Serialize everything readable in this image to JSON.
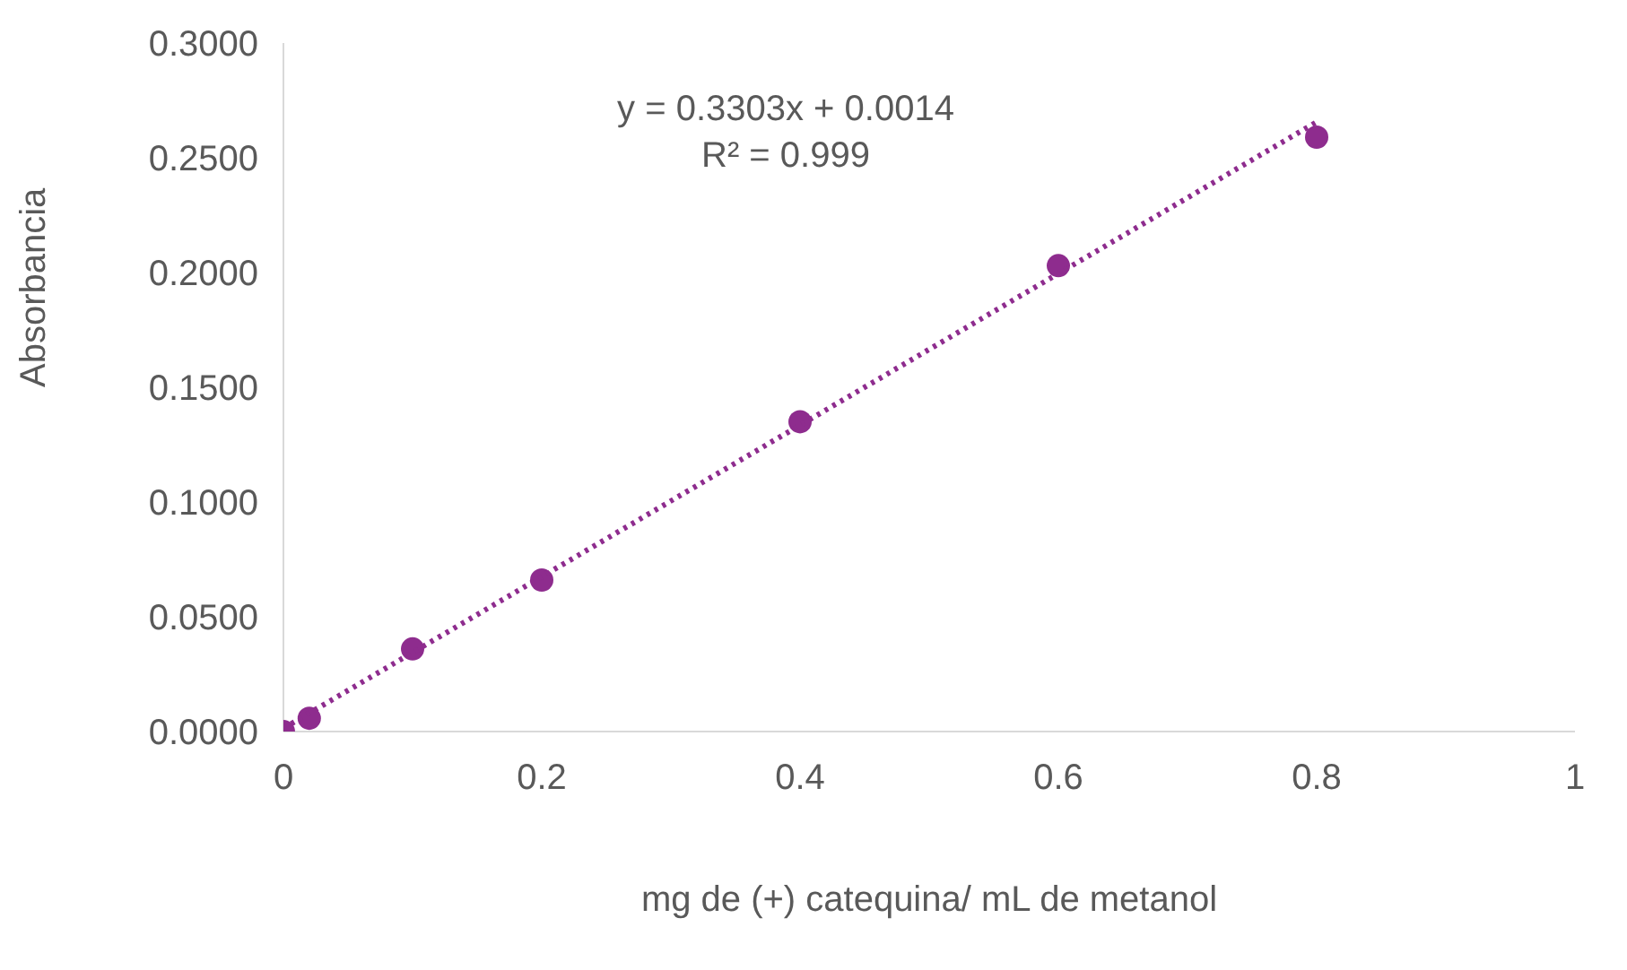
{
  "chart_data": {
    "type": "scatter",
    "xlabel": "mg de (+) catequina/ mL de metanol",
    "ylabel": "Absorbancia",
    "annotations": [
      "y = 0.3303x + 0.0014",
      "R² = 0.999"
    ],
    "xlim": [
      0,
      1
    ],
    "xticks": [
      0,
      0.2,
      0.4,
      0.6,
      0.8,
      1
    ],
    "ylim": [
      0,
      0.3
    ],
    "yticks": [
      {
        "value": 0,
        "label": "0.0000"
      },
      {
        "value": 0.05,
        "label": "0.0500"
      },
      {
        "value": 0.1,
        "label": "0.1000"
      },
      {
        "value": 0.15,
        "label": "0.1500"
      },
      {
        "value": 0.2,
        "label": "0.2000"
      },
      {
        "value": 0.25,
        "label": "0.2500"
      },
      {
        "value": 0.3,
        "label": "0.3000"
      }
    ],
    "grid": false,
    "legend": false,
    "series": [
      {
        "color": "#8e2c8e",
        "marker": "circle",
        "x": [
          0,
          0.02,
          0.1,
          0.2,
          0.4,
          0.6,
          0.8
        ],
        "values": [
          0,
          0.0058,
          0.036,
          0.066,
          0.135,
          0.203,
          0.259
        ]
      },
      {
        "type": "line",
        "color": "#8e2c8e",
        "line_style": "dotted",
        "x": [
          0,
          0.8
        ],
        "values": [
          0.0014,
          0.2656
        ]
      }
    ]
  }
}
